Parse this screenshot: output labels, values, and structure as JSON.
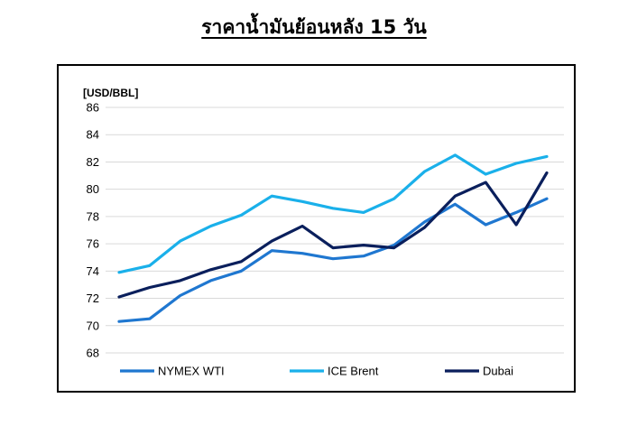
{
  "page": {
    "title": "ราคาน้ำมันย้อนหลัง 15 วัน"
  },
  "chart_data": {
    "type": "line",
    "ylabel": "[USD/BBL]",
    "ylim": [
      68,
      86
    ],
    "yticks": [
      68,
      70,
      72,
      74,
      76,
      78,
      80,
      82,
      84,
      86
    ],
    "x": [
      1,
      2,
      3,
      4,
      5,
      6,
      7,
      8,
      9,
      10,
      11,
      12,
      13,
      14,
      15
    ],
    "grid": "horizontal",
    "legend_position": "bottom",
    "series": [
      {
        "name": "NYMEX WTI",
        "color": "#1f77d0",
        "values": [
          70.3,
          70.5,
          72.2,
          73.3,
          74.0,
          75.5,
          75.3,
          74.9,
          75.1,
          75.9,
          77.6,
          78.9,
          77.4,
          78.3,
          79.3
        ]
      },
      {
        "name": "ICE Brent",
        "color": "#1ab0ea",
        "values": [
          73.9,
          74.4,
          76.2,
          77.3,
          78.1,
          79.5,
          79.1,
          78.6,
          78.3,
          79.3,
          81.3,
          82.5,
          81.1,
          81.9,
          82.4
        ]
      },
      {
        "name": "Dubai",
        "color": "#0a1f5c",
        "values": [
          72.1,
          72.8,
          73.3,
          74.1,
          74.7,
          76.2,
          77.3,
          75.7,
          75.9,
          75.7,
          77.2,
          79.5,
          80.5,
          77.4,
          81.2
        ]
      }
    ]
  }
}
